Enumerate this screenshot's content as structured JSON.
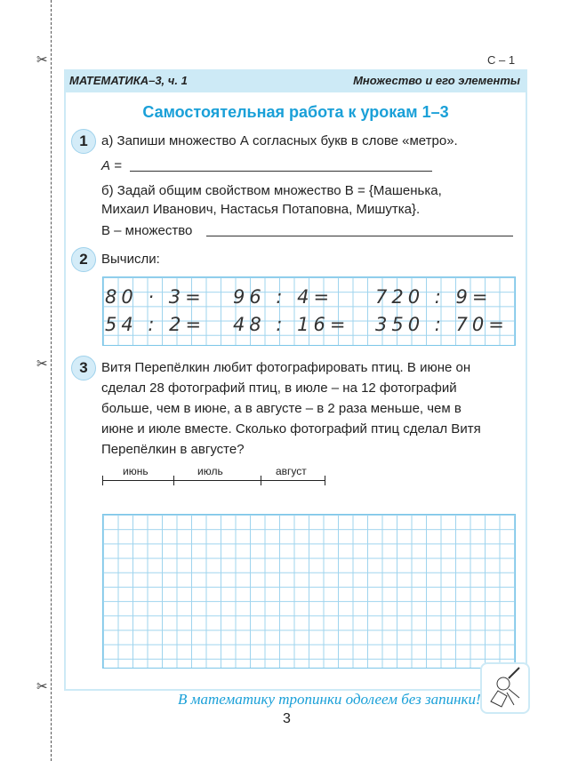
{
  "page_code": "С – 1",
  "header": {
    "left": "МАТЕМАТИКА–3, ч. 1",
    "right": "Множество и его элементы"
  },
  "title": "Самостоятельная работа к урокам 1–3",
  "task1": {
    "number": "1",
    "a": "а) Запиши множество А согласных букв в слове «метро».",
    "a_answer_label": "А =",
    "b_line1": "б) Задай общим свойством множество В = {Машенька,",
    "b_line2": "Михаил Иванович, Настасья Потаповна, Мишутка}.",
    "b_answer_label": "В – множество"
  },
  "task2": {
    "number": "2",
    "text": "Вычисли:",
    "expressions": [
      "80 · 3=",
      "96 : 4=",
      "720 : 9=",
      "54 : 2=",
      "48 : 16=",
      "350 : 70="
    ]
  },
  "task3": {
    "number": "3",
    "lines": [
      "Витя Перепёлкин любит фотографировать птиц. В июне он",
      "сделал 28 фотографий птиц, в июле – на 12 фотографий",
      "больше, чем в июне, а в августе – в 2 раза меньше, чем в",
      "июне и июле вместе. Сколько фотографий птиц сделал Витя",
      "Перепёлкин в августе?"
    ],
    "segments": [
      "июнь",
      "июль",
      "август"
    ]
  },
  "footer": {
    "motto": "В математику тропинки одолеем без запинки!",
    "page_number": "3"
  },
  "colors": {
    "accent": "#1aa0d8",
    "band": "#cdeaf6",
    "grid": "#9fd4ee"
  }
}
